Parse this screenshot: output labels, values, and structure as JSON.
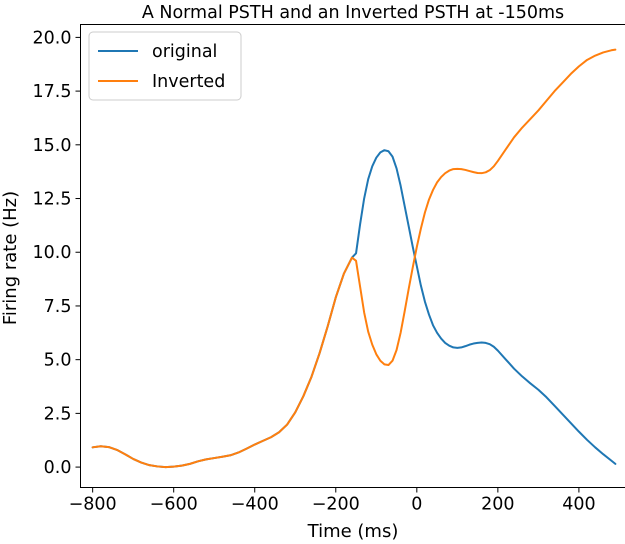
{
  "chart_data": {
    "type": "line",
    "title": "A Normal PSTH and an Inverted PSTH at -150ms",
    "xlabel": "Time (ms)",
    "ylabel": "Firing rate (Hz)",
    "xlim": [
      -830,
      515
    ],
    "ylim": [
      -0.95,
      20.6
    ],
    "x_ticks": [
      -800,
      -600,
      -400,
      -200,
      0,
      200,
      400
    ],
    "x_tick_labels": [
      "−800",
      "−600",
      "−400",
      "−200",
      "0",
      "200",
      "400"
    ],
    "y_ticks": [
      0.0,
      2.5,
      5.0,
      7.5,
      10.0,
      12.5,
      15.0,
      17.5,
      20.0
    ],
    "y_tick_labels": [
      "0.0",
      "2.5",
      "5.0",
      "7.5",
      "10.0",
      "12.5",
      "15.0",
      "17.5",
      "20.0"
    ],
    "grid": false,
    "legend_position": "top-left",
    "series": [
      {
        "name": "original",
        "color": "#1f77b4",
        "points": [
          [
            -800,
            0.92
          ],
          [
            -780,
            0.97
          ],
          [
            -760,
            0.93
          ],
          [
            -740,
            0.8
          ],
          [
            -720,
            0.6
          ],
          [
            -700,
            0.38
          ],
          [
            -680,
            0.21
          ],
          [
            -660,
            0.09
          ],
          [
            -640,
            0.03
          ],
          [
            -620,
            0.0
          ],
          [
            -600,
            0.02
          ],
          [
            -580,
            0.07
          ],
          [
            -560,
            0.15
          ],
          [
            -540,
            0.27
          ],
          [
            -520,
            0.36
          ],
          [
            -500,
            0.42
          ],
          [
            -480,
            0.48
          ],
          [
            -460,
            0.55
          ],
          [
            -440,
            0.68
          ],
          [
            -420,
            0.86
          ],
          [
            -400,
            1.05
          ],
          [
            -380,
            1.22
          ],
          [
            -360,
            1.39
          ],
          [
            -340,
            1.62
          ],
          [
            -320,
            1.98
          ],
          [
            -300,
            2.55
          ],
          [
            -280,
            3.3
          ],
          [
            -260,
            4.2
          ],
          [
            -240,
            5.3
          ],
          [
            -220,
            6.55
          ],
          [
            -200,
            7.9
          ],
          [
            -180,
            9.0
          ],
          [
            -160,
            9.75
          ],
          [
            -150,
            9.95
          ],
          [
            -140,
            11.3
          ],
          [
            -130,
            12.5
          ],
          [
            -120,
            13.4
          ],
          [
            -110,
            14.0
          ],
          [
            -100,
            14.4
          ],
          [
            -90,
            14.65
          ],
          [
            -80,
            14.75
          ],
          [
            -70,
            14.7
          ],
          [
            -60,
            14.45
          ],
          [
            -50,
            13.9
          ],
          [
            -40,
            13.1
          ],
          [
            -30,
            12.15
          ],
          [
            -20,
            11.2
          ],
          [
            -10,
            10.25
          ],
          [
            0,
            9.35
          ],
          [
            10,
            8.45
          ],
          [
            20,
            7.7
          ],
          [
            30,
            7.1
          ],
          [
            40,
            6.6
          ],
          [
            50,
            6.25
          ],
          [
            60,
            5.98
          ],
          [
            70,
            5.78
          ],
          [
            80,
            5.65
          ],
          [
            90,
            5.57
          ],
          [
            100,
            5.55
          ],
          [
            110,
            5.57
          ],
          [
            120,
            5.63
          ],
          [
            130,
            5.7
          ],
          [
            140,
            5.75
          ],
          [
            150,
            5.78
          ],
          [
            160,
            5.8
          ],
          [
            170,
            5.78
          ],
          [
            180,
            5.72
          ],
          [
            190,
            5.6
          ],
          [
            200,
            5.42
          ],
          [
            220,
            5.0
          ],
          [
            240,
            4.58
          ],
          [
            260,
            4.22
          ],
          [
            280,
            3.9
          ],
          [
            300,
            3.6
          ],
          [
            320,
            3.25
          ],
          [
            340,
            2.85
          ],
          [
            360,
            2.45
          ],
          [
            380,
            2.05
          ],
          [
            400,
            1.65
          ],
          [
            420,
            1.27
          ],
          [
            440,
            0.92
          ],
          [
            460,
            0.6
          ],
          [
            480,
            0.3
          ],
          [
            490,
            0.15
          ]
        ]
      },
      {
        "name": "Inverted",
        "color": "#ff7f0e",
        "points": [
          [
            -800,
            0.92
          ],
          [
            -780,
            0.97
          ],
          [
            -760,
            0.93
          ],
          [
            -740,
            0.8
          ],
          [
            -720,
            0.6
          ],
          [
            -700,
            0.38
          ],
          [
            -680,
            0.21
          ],
          [
            -660,
            0.09
          ],
          [
            -640,
            0.03
          ],
          [
            -620,
            0.0
          ],
          [
            -600,
            0.02
          ],
          [
            -580,
            0.07
          ],
          [
            -560,
            0.15
          ],
          [
            -540,
            0.27
          ],
          [
            -520,
            0.36
          ],
          [
            -500,
            0.42
          ],
          [
            -480,
            0.48
          ],
          [
            -460,
            0.55
          ],
          [
            -440,
            0.68
          ],
          [
            -420,
            0.86
          ],
          [
            -400,
            1.05
          ],
          [
            -380,
            1.22
          ],
          [
            -360,
            1.39
          ],
          [
            -340,
            1.62
          ],
          [
            -320,
            1.98
          ],
          [
            -300,
            2.55
          ],
          [
            -280,
            3.3
          ],
          [
            -260,
            4.2
          ],
          [
            -240,
            5.3
          ],
          [
            -220,
            6.55
          ],
          [
            -200,
            7.9
          ],
          [
            -180,
            9.0
          ],
          [
            -160,
            9.75
          ],
          [
            -150,
            9.6
          ],
          [
            -140,
            8.4
          ],
          [
            -130,
            7.2
          ],
          [
            -120,
            6.3
          ],
          [
            -110,
            5.7
          ],
          [
            -100,
            5.25
          ],
          [
            -90,
            4.95
          ],
          [
            -80,
            4.78
          ],
          [
            -70,
            4.75
          ],
          [
            -60,
            4.95
          ],
          [
            -50,
            5.45
          ],
          [
            -40,
            6.25
          ],
          [
            -30,
            7.25
          ],
          [
            -20,
            8.3
          ],
          [
            -10,
            9.3
          ],
          [
            0,
            10.25
          ],
          [
            10,
            11.1
          ],
          [
            20,
            11.85
          ],
          [
            30,
            12.45
          ],
          [
            40,
            12.9
          ],
          [
            50,
            13.25
          ],
          [
            60,
            13.5
          ],
          [
            70,
            13.68
          ],
          [
            80,
            13.8
          ],
          [
            90,
            13.87
          ],
          [
            100,
            13.88
          ],
          [
            110,
            13.87
          ],
          [
            120,
            13.83
          ],
          [
            130,
            13.78
          ],
          [
            140,
            13.73
          ],
          [
            150,
            13.69
          ],
          [
            160,
            13.68
          ],
          [
            170,
            13.72
          ],
          [
            180,
            13.82
          ],
          [
            190,
            14.0
          ],
          [
            200,
            14.25
          ],
          [
            220,
            14.8
          ],
          [
            240,
            15.35
          ],
          [
            260,
            15.8
          ],
          [
            280,
            16.2
          ],
          [
            300,
            16.6
          ],
          [
            320,
            17.05
          ],
          [
            340,
            17.5
          ],
          [
            360,
            17.9
          ],
          [
            380,
            18.3
          ],
          [
            400,
            18.65
          ],
          [
            420,
            18.95
          ],
          [
            440,
            19.15
          ],
          [
            460,
            19.3
          ],
          [
            480,
            19.4
          ],
          [
            490,
            19.43
          ]
        ]
      }
    ]
  }
}
